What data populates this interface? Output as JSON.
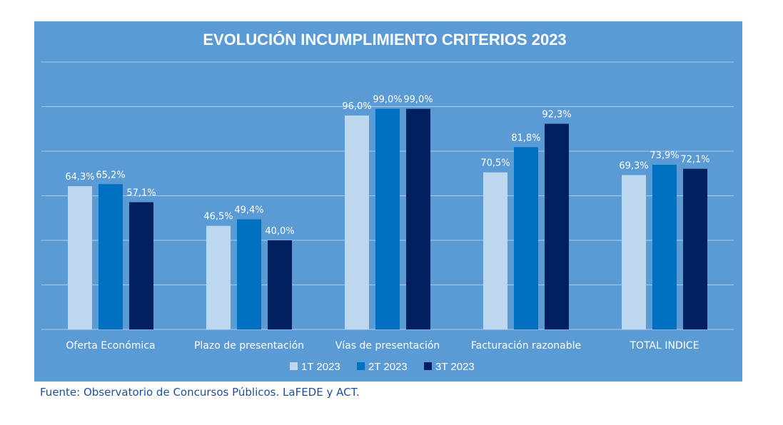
{
  "colors": {
    "background": "#5b9bd5",
    "gridline": "#a9c8ea",
    "text": "#ffffff",
    "source_text": "#1f4e9a"
  },
  "chart_data": {
    "type": "bar",
    "title": "EVOLUCIÓN INCUMPLIMIENTO CRITERIOS 2023",
    "xlabel": "",
    "ylabel": "",
    "ylim": [
      0,
      120
    ],
    "grid": true,
    "legend_position": "bottom",
    "categories": [
      "Oferta Económica",
      "Plazo de presentación",
      "Vías de presentación",
      "Facturación razonable",
      "TOTAL INDICE"
    ],
    "series": [
      {
        "name": "1T 2023",
        "color": "#bdd7ee",
        "values": [
          64.3,
          46.5,
          96.0,
          70.5,
          69.3
        ],
        "labels": [
          "64,3%",
          "46,5%",
          "96,0%",
          "70,5%",
          "69,3%"
        ]
      },
      {
        "name": "2T 2023",
        "color": "#0070c0",
        "values": [
          65.2,
          49.4,
          99.0,
          81.8,
          73.9
        ],
        "labels": [
          "65,2%",
          "49,4%",
          "99,0%",
          "81,8%",
          "73,9%"
        ]
      },
      {
        "name": "3T 2023",
        "color": "#002060",
        "values": [
          57.1,
          40.0,
          99.0,
          92.3,
          72.1
        ],
        "labels": [
          "57,1%",
          "40,0%",
          "99,0%",
          "92,3%",
          "72,1%"
        ]
      }
    ]
  },
  "source": "Fuente: Observatorio de Concursos Públicos. LaFEDE y ACT."
}
